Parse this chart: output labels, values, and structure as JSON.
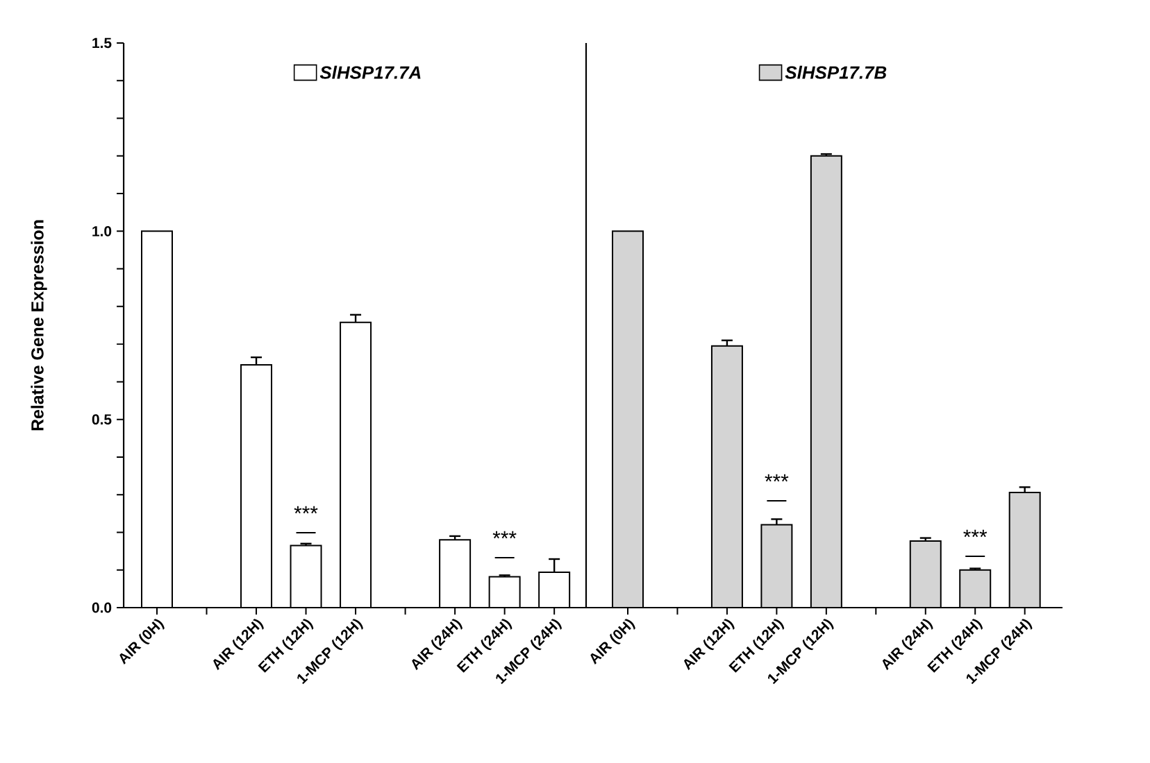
{
  "chart_data": [
    {
      "type": "bar",
      "ylabel": "Relative Gene Expression",
      "categories": [
        "AIR (0H)",
        null,
        "AIR (12H)",
        "ETH (12H)",
        "1-MCP (12H)",
        null,
        "AIR (24H)",
        "ETH (24H)",
        "1-MCP (24H)"
      ],
      "series": [
        {
          "name": "SlHSP17.7A",
          "color": "#ffffff",
          "values": [
            1.0,
            null,
            0.645,
            0.165,
            0.758,
            null,
            0.18,
            0.082,
            0.094
          ],
          "errors": [
            null,
            null,
            0.02,
            0.005,
            0.02,
            null,
            0.01,
            0.004,
            0.035
          ]
        }
      ],
      "ylim": [
        0,
        1.5
      ],
      "yticks": [
        {
          "value": 0,
          "label": "0.0"
        },
        {
          "value": 0.1,
          "label": null
        },
        {
          "value": 0.2,
          "label": null
        },
        {
          "value": 0.3,
          "label": null
        },
        {
          "value": 0.4,
          "label": null
        },
        {
          "value": 0.5,
          "label": "0.5"
        },
        {
          "value": 0.6,
          "label": null
        },
        {
          "value": 0.7,
          "label": null
        },
        {
          "value": 0.8,
          "label": null
        },
        {
          "value": 0.9,
          "label": null
        },
        {
          "value": 1.0,
          "label": "1.0"
        },
        {
          "value": 1.1,
          "label": null
        },
        {
          "value": 1.2,
          "label": null
        },
        {
          "value": 1.3,
          "label": null
        },
        {
          "value": 1.4,
          "label": null
        },
        {
          "value": 1.5,
          "label": "1.5"
        }
      ],
      "legend": "top",
      "annotations": [
        "***",
        "***"
      ]
    },
    {
      "type": "bar",
      "categories": [
        "AIR (0H)",
        null,
        "AIR (12H)",
        "ETH (12H)",
        "1-MCP (12H)",
        null,
        "AIR (24H)",
        "ETH (24H)",
        "1-MCP (24H)"
      ],
      "series": [
        {
          "name": "SlHSP17.7B",
          "color": "#d4d4d4",
          "values": [
            1.0,
            null,
            0.695,
            0.22,
            1.2,
            null,
            0.177,
            0.1,
            0.306
          ],
          "errors": [
            null,
            null,
            0.015,
            0.015,
            0.005,
            null,
            0.008,
            0.004,
            0.014
          ]
        }
      ],
      "ylim": [
        0,
        1.5
      ],
      "tick_labels": "x",
      "legend": "top",
      "annotations": [
        "***",
        "***"
      ]
    }
  ]
}
